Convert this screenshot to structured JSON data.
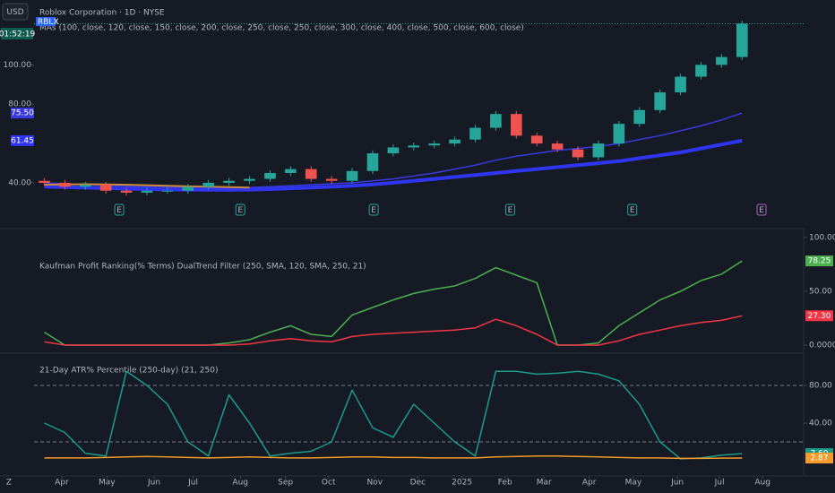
{
  "header": {
    "currency": "USD",
    "countdown": "01:52:19",
    "corner": "Z"
  },
  "chart_data": [
    {
      "type": "candlestick",
      "title": "Roblox Corporation · 1D · NYSE",
      "ticker": "RBLX",
      "subtitle": "MAs (100, close, 120, close, 150, close, 200, close, 250, close, 250, close, 300, close, 400, close, 500, close, 600, close)",
      "x": [
        1,
        3,
        5,
        7,
        9,
        11,
        13,
        15,
        17,
        19,
        21,
        23,
        25,
        27,
        29,
        31,
        33,
        35,
        37,
        39,
        41,
        43,
        45,
        47,
        49,
        51,
        53,
        55,
        57,
        59,
        61,
        63,
        65,
        67,
        69
      ],
      "open": [
        41,
        40,
        38,
        39,
        36,
        35,
        36,
        36,
        38,
        40,
        41,
        42,
        45,
        47,
        42,
        41,
        46,
        55,
        58,
        59,
        60,
        62,
        68,
        75,
        64,
        60,
        57,
        53,
        60,
        70,
        77,
        86,
        94,
        100,
        104
      ],
      "high": [
        42.5,
        41.5,
        40.5,
        40.5,
        37.5,
        37.5,
        37.5,
        39.5,
        41.5,
        42.5,
        43.5,
        46.5,
        48.5,
        48.5,
        43.5,
        47.5,
        56.5,
        59.5,
        60.5,
        61.5,
        63.5,
        69.5,
        76.5,
        76.5,
        65.5,
        61.5,
        58.5,
        61.5,
        71.5,
        78.5,
        87.5,
        95.5,
        101.5,
        105.5,
        122.5
      ],
      "low": [
        38.5,
        36.5,
        36.5,
        34.5,
        33.5,
        33.5,
        34.5,
        34.5,
        36.5,
        38.5,
        39.5,
        40.5,
        43.5,
        40.5,
        39.5,
        39.5,
        44.5,
        53.5,
        56.5,
        57.5,
        58.5,
        60.5,
        66.5,
        62.5,
        58.5,
        55.5,
        51.5,
        51.5,
        58.5,
        68.5,
        75.5,
        84.5,
        92.5,
        98.5,
        102.5
      ],
      "close": [
        40,
        38,
        39,
        36,
        35,
        36,
        36,
        38,
        40,
        41,
        42,
        45,
        47,
        42,
        41,
        46,
        55,
        58,
        59,
        60,
        62,
        68,
        75,
        64,
        60,
        57,
        53,
        60,
        70,
        77,
        86,
        94,
        100,
        104,
        121
      ],
      "up_color": "#26a69a",
      "down_color": "#ef5350",
      "overlays": [
        {
          "color": "#3a3ae0",
          "width": 1.5,
          "values": [
            40,
            39.5,
            39,
            38.7,
            38.3,
            38,
            37.8,
            37.6,
            37.5,
            37.5,
            37.6,
            38,
            38.5,
            39,
            39.5,
            40,
            41,
            42,
            43.5,
            45,
            47,
            49,
            51.5,
            53.5,
            55,
            56.5,
            57.5,
            58.5,
            60,
            62,
            64,
            66.5,
            69,
            72,
            75.5
          ],
          "value_labels": [
            null,
            null,
            null,
            null,
            null,
            null,
            null,
            null,
            null,
            null,
            null,
            null,
            null,
            null,
            null,
            null,
            null,
            null,
            null,
            null,
            null,
            null,
            null,
            null,
            null,
            null,
            null,
            null,
            null,
            null,
            null,
            null,
            null,
            null,
            "75.50"
          ]
        },
        {
          "color": "#2f35f0",
          "width": 4,
          "values": [
            38,
            37.8,
            37.5,
            37.3,
            37,
            36.8,
            36.6,
            36.5,
            36.4,
            36.4,
            36.5,
            36.8,
            37.2,
            37.6,
            38,
            38.5,
            39.2,
            40,
            41,
            42,
            43,
            44,
            45,
            46,
            47,
            48,
            49,
            50,
            51,
            52.5,
            54,
            55.5,
            57.5,
            59.5,
            61.45
          ],
          "value_labels": [
            null,
            null,
            null,
            null,
            null,
            null,
            null,
            null,
            null,
            null,
            null,
            null,
            null,
            null,
            null,
            null,
            null,
            null,
            null,
            null,
            null,
            null,
            null,
            null,
            null,
            null,
            null,
            null,
            null,
            null,
            null,
            null,
            null,
            null,
            "61.45"
          ]
        },
        {
          "color": "#c98a3a",
          "width": 2,
          "values": [
            39,
            39.2,
            39.3,
            39.2,
            39,
            38.8,
            38.5,
            38.2,
            38,
            37.8,
            37.6,
            null,
            null,
            null,
            null,
            null,
            null,
            null,
            null,
            null,
            null,
            null,
            null,
            null,
            null,
            null,
            null,
            null,
            null,
            null,
            null,
            null,
            null,
            null,
            null
          ]
        }
      ],
      "events": {
        "x": [
          8.3,
          20.1,
          33.1,
          46.4,
          58.3,
          70.9
        ],
        "labels": [
          "E",
          "E",
          "E",
          "E",
          "E",
          "E"
        ]
      },
      "xlim": [
        0,
        75
      ],
      "ylim": [
        19,
        133
      ],
      "yticks": [
        {
          "value": 100,
          "label": "100.00"
        },
        {
          "value": 80,
          "label": "80.00"
        },
        {
          "value": 40,
          "label": "40.00"
        }
      ]
    },
    {
      "type": "line",
      "title": "Kaufman Profit Ranking(% Terms) DualTrend Filter (250, SMA, 120, SMA, 250, 21)",
      "x": [
        1,
        3,
        5,
        7,
        9,
        11,
        13,
        15,
        17,
        19,
        21,
        23,
        25,
        27,
        29,
        31,
        33,
        35,
        37,
        39,
        41,
        43,
        45,
        47,
        49,
        51,
        53,
        55,
        57,
        59,
        61,
        63,
        65,
        67,
        69
      ],
      "series": [
        {
          "color": "#4caf50",
          "values": [
            12,
            0,
            0,
            0,
            0,
            0,
            0,
            0,
            0,
            2,
            5,
            12,
            18,
            10,
            8,
            28,
            35,
            42,
            48,
            52,
            55,
            62,
            72,
            65,
            58,
            0,
            0,
            2,
            18,
            30,
            42,
            50,
            60,
            66,
            78.25
          ],
          "value_labels": [
            null,
            null,
            null,
            null,
            null,
            null,
            null,
            null,
            null,
            null,
            null,
            null,
            null,
            null,
            null,
            null,
            null,
            null,
            null,
            null,
            null,
            null,
            null,
            null,
            null,
            null,
            null,
            null,
            null,
            null,
            null,
            null,
            null,
            null,
            "78.25"
          ]
        },
        {
          "color": "#f23645",
          "values": [
            3,
            0,
            0,
            0,
            0,
            0,
            0,
            0,
            0,
            0,
            1,
            4,
            6,
            4,
            3,
            8,
            10,
            11,
            12,
            13,
            14,
            16,
            24,
            18,
            10,
            0,
            0,
            0,
            4,
            10,
            14,
            18,
            21,
            23,
            27.3
          ],
          "value_labels": [
            null,
            null,
            null,
            null,
            null,
            null,
            null,
            null,
            null,
            null,
            null,
            null,
            null,
            null,
            null,
            null,
            null,
            null,
            null,
            null,
            null,
            null,
            null,
            null,
            null,
            null,
            null,
            null,
            null,
            null,
            null,
            null,
            null,
            null,
            "27.30"
          ]
        }
      ],
      "xlim": [
        0,
        75
      ],
      "ylim": [
        -5.8,
        105.8
      ],
      "yticks": [
        {
          "value": 100,
          "label": "100.00"
        },
        {
          "value": 50,
          "label": "50.00"
        },
        {
          "value": 0,
          "label": "0.0000"
        }
      ]
    },
    {
      "type": "line",
      "title": "21-Day ATR% Percentile (250-day) (21, 250)",
      "x": [
        1,
        3,
        5,
        7,
        9,
        11,
        13,
        15,
        17,
        19,
        21,
        23,
        25,
        27,
        29,
        31,
        33,
        35,
        37,
        39,
        41,
        43,
        45,
        47,
        49,
        51,
        53,
        55,
        57,
        59,
        61,
        63,
        65,
        67,
        69
      ],
      "series": [
        {
          "color": "#1a9c8a",
          "values": [
            40,
            30,
            8,
            5,
            95,
            80,
            60,
            20,
            5,
            70,
            40,
            5,
            8,
            10,
            20,
            75,
            35,
            25,
            60,
            40,
            20,
            5,
            95,
            95,
            92,
            93,
            95,
            92,
            85,
            60,
            20,
            2,
            3,
            6,
            7.6
          ],
          "value_labels": [
            null,
            null,
            null,
            null,
            null,
            null,
            null,
            null,
            null,
            null,
            null,
            null,
            null,
            null,
            null,
            null,
            null,
            null,
            null,
            null,
            null,
            null,
            null,
            null,
            null,
            null,
            null,
            null,
            null,
            null,
            null,
            null,
            null,
            null,
            "7.60"
          ]
        },
        {
          "color": "#f59b2b",
          "values": [
            3,
            3,
            3,
            3.5,
            4,
            4.5,
            4,
            3.5,
            3,
            3.5,
            4,
            3.5,
            3,
            3,
            3.5,
            4,
            4,
            3.5,
            3.5,
            3,
            3,
            3,
            4,
            4.5,
            5,
            5,
            4.5,
            4,
            3.5,
            3,
            3,
            2.5,
            2.5,
            2.8,
            2.87
          ],
          "value_labels": [
            null,
            null,
            null,
            null,
            null,
            null,
            null,
            null,
            null,
            null,
            null,
            null,
            null,
            null,
            null,
            null,
            null,
            null,
            null,
            null,
            null,
            null,
            null,
            null,
            null,
            null,
            null,
            null,
            null,
            null,
            null,
            null,
            null,
            null,
            "2.87"
          ]
        }
      ],
      "levels": [
        80,
        20
      ],
      "xlim": [
        0,
        75
      ],
      "ylim": [
        -15.2,
        112.4
      ],
      "yticks": [
        {
          "value": 80,
          "label": "80.00"
        },
        {
          "value": 40,
          "label": "40.00"
        }
      ],
      "xticks": [
        {
          "value": 2.7,
          "label": "Apr"
        },
        {
          "value": 7.1,
          "label": "May"
        },
        {
          "value": 11.7,
          "label": "Jun"
        },
        {
          "value": 15.5,
          "label": "Jul"
        },
        {
          "value": 20.1,
          "label": "Aug"
        },
        {
          "value": 24.5,
          "label": "Sep"
        },
        {
          "value": 28.7,
          "label": "Oct"
        },
        {
          "value": 33.2,
          "label": "Nov"
        },
        {
          "value": 37.4,
          "label": "Dec"
        },
        {
          "value": 41.7,
          "label": "2025"
        },
        {
          "value": 45.9,
          "label": "Feb"
        },
        {
          "value": 49.7,
          "label": "Mar"
        },
        {
          "value": 54.1,
          "label": "Apr"
        },
        {
          "value": 58.4,
          "label": "May"
        },
        {
          "value": 62.7,
          "label": "Jun"
        },
        {
          "value": 66.8,
          "label": "Jul"
        },
        {
          "value": 71.0,
          "label": "Aug"
        }
      ]
    }
  ]
}
